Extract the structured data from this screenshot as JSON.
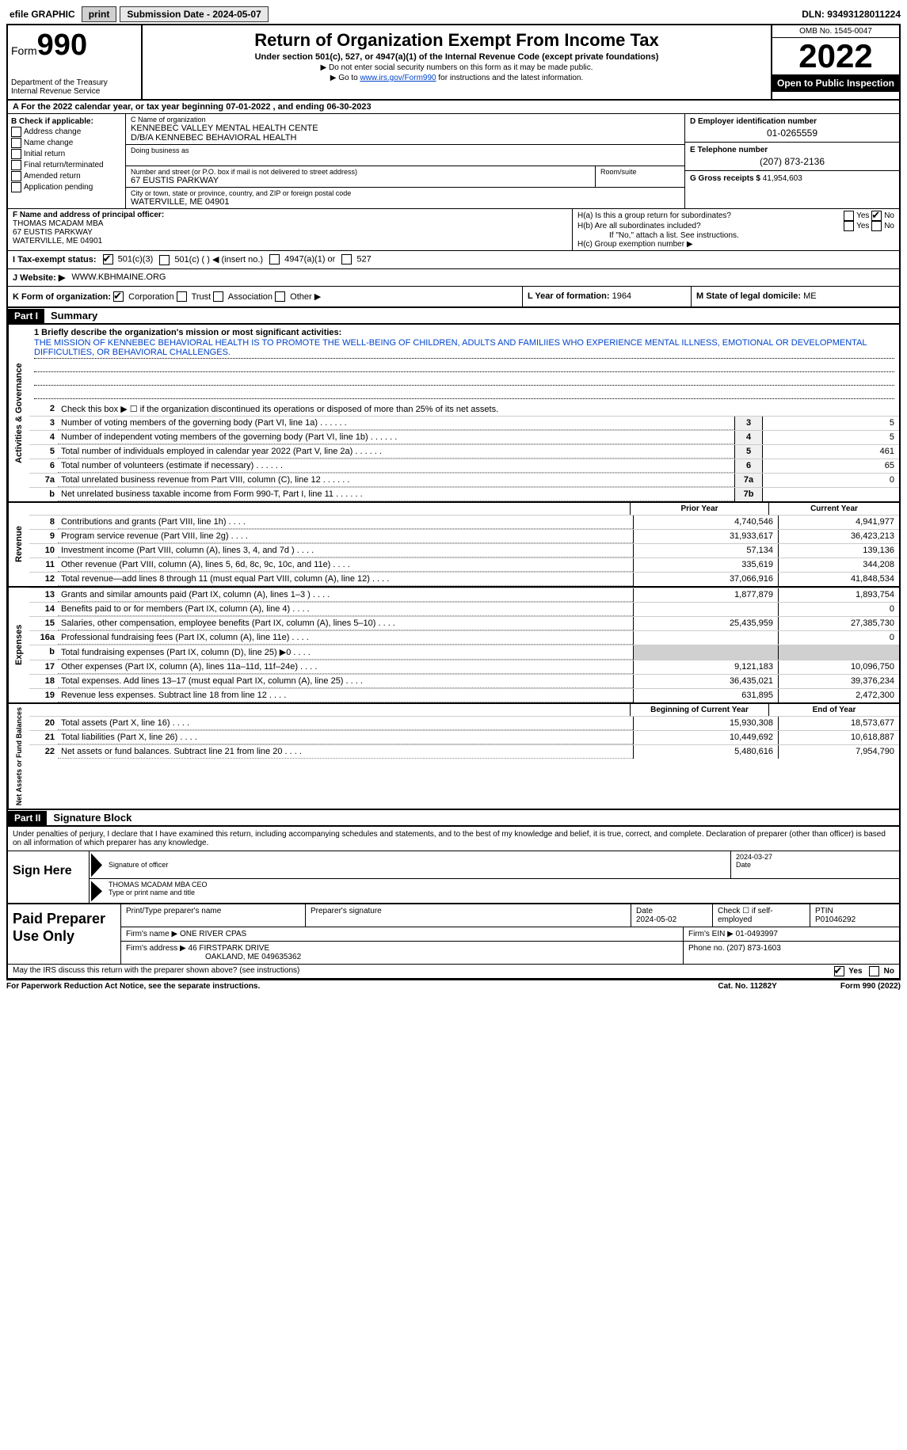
{
  "topbar": {
    "efile_label": "efile GRAPHIC",
    "print_btn": "print",
    "submission_label": "Submission Date - 2024-05-07",
    "dln": "DLN: 93493128011224"
  },
  "header": {
    "form_word": "Form",
    "form_num": "990",
    "dept": "Department of the Treasury",
    "irs": "Internal Revenue Service",
    "title": "Return of Organization Exempt From Income Tax",
    "subtitle": "Under section 501(c), 527, or 4947(a)(1) of the Internal Revenue Code (except private foundations)",
    "note1": "▶ Do not enter social security numbers on this form as it may be made public.",
    "note2_pre": "▶ Go to ",
    "note2_link": "www.irs.gov/Form990",
    "note2_post": " for instructions and the latest information.",
    "omb": "OMB No. 1545-0047",
    "year": "2022",
    "open": "Open to Public Inspection"
  },
  "row_a": "A   For the 2022 calendar year, or tax year beginning 07-01-2022    , and ending 06-30-2023",
  "col_b": {
    "label": "B Check if applicable:",
    "opts": [
      "Address change",
      "Name change",
      "Initial return",
      "Final return/terminated",
      "Amended return",
      "Application pending"
    ]
  },
  "col_c": {
    "name_label": "C Name of organization",
    "name1": "KENNEBEC VALLEY MENTAL HEALTH CENTE",
    "name2": "D/B/A KENNEBEC BEHAVIORAL HEALTH",
    "dba_label": "Doing business as",
    "street_label": "Number and street (or P.O. box if mail is not delivered to street address)",
    "street": "67 EUSTIS PARKWAY",
    "room_label": "Room/suite",
    "city_label": "City or town, state or province, country, and ZIP or foreign postal code",
    "city": "WATERVILLE, ME  04901"
  },
  "col_d": {
    "ein_label": "D Employer identification number",
    "ein": "01-0265559",
    "phone_label": "E Telephone number",
    "phone": "(207) 873-2136",
    "gross_label": "G Gross receipts $",
    "gross": "41,954,603"
  },
  "row_f": {
    "label": "F Name and address of principal officer:",
    "name": "THOMAS MCADAM MBA",
    "street": "67 EUSTIS PARKWAY",
    "city": "WATERVILLE, ME  04901"
  },
  "row_h": {
    "ha": "H(a)  Is this a group return for subordinates?",
    "hb": "H(b)  Are all subordinates included?",
    "hb_note": "If \"No,\" attach a list. See instructions.",
    "hc": "H(c)  Group exemption number ▶"
  },
  "row_i": {
    "label": "I    Tax-exempt status:",
    "o1": "501(c)(3)",
    "o2": "501(c) (  ) ◀ (insert no.)",
    "o3": "4947(a)(1) or",
    "o4": "527"
  },
  "row_j": {
    "label": "J   Website: ▶",
    "val": "WWW.KBHMAINE.ORG"
  },
  "row_k": {
    "label": "K Form of organization:",
    "o1": "Corporation",
    "o2": "Trust",
    "o3": "Association",
    "o4": "Other ▶",
    "l_label": "L Year of formation:",
    "l_val": "1964",
    "m_label": "M State of legal domicile:",
    "m_val": "ME"
  },
  "part1": {
    "header": "Part I",
    "title": "Summary",
    "vlabels": {
      "gov": "Activities & Governance",
      "rev": "Revenue",
      "exp": "Expenses",
      "net": "Net Assets or Fund Balances"
    },
    "line1_label": "1   Briefly describe the organization's mission or most significant activities:",
    "mission": "THE MISSION OF KENNEBEC BEHAVIORAL HEALTH IS TO PROMOTE THE WELL-BEING OF CHILDREN, ADULTS AND FAMILIIES WHO EXPERIENCE MENTAL ILLNESS, EMOTIONAL OR DEVELOPMENTAL DIFFICULTIES, OR BEHAVIORAL CHALLENGES.",
    "line2": "Check this box ▶ ☐  if the organization discontinued its operations or disposed of more than 25% of its net assets.",
    "gov_lines": [
      {
        "n": "3",
        "d": "Number of voting members of the governing body (Part VI, line 1a)",
        "b": "3",
        "v": "5"
      },
      {
        "n": "4",
        "d": "Number of independent voting members of the governing body (Part VI, line 1b)",
        "b": "4",
        "v": "5"
      },
      {
        "n": "5",
        "d": "Total number of individuals employed in calendar year 2022 (Part V, line 2a)",
        "b": "5",
        "v": "461"
      },
      {
        "n": "6",
        "d": "Total number of volunteers (estimate if necessary)",
        "b": "6",
        "v": "65"
      },
      {
        "n": "7a",
        "d": "Total unrelated business revenue from Part VIII, column (C), line 12",
        "b": "7a",
        "v": "0"
      },
      {
        "n": "b",
        "d": "Net unrelated business taxable income from Form 990-T, Part I, line 11",
        "b": "7b",
        "v": ""
      }
    ],
    "col_hdr_prior": "Prior Year",
    "col_hdr_current": "Current Year",
    "col_hdr_begin": "Beginning of Current Year",
    "col_hdr_end": "End of Year",
    "rev_lines": [
      {
        "n": "8",
        "d": "Contributions and grants (Part VIII, line 1h)",
        "p": "4,740,546",
        "c": "4,941,977"
      },
      {
        "n": "9",
        "d": "Program service revenue (Part VIII, line 2g)",
        "p": "31,933,617",
        "c": "36,423,213"
      },
      {
        "n": "10",
        "d": "Investment income (Part VIII, column (A), lines 3, 4, and 7d )",
        "p": "57,134",
        "c": "139,136"
      },
      {
        "n": "11",
        "d": "Other revenue (Part VIII, column (A), lines 5, 6d, 8c, 9c, 10c, and 11e)",
        "p": "335,619",
        "c": "344,208"
      },
      {
        "n": "12",
        "d": "Total revenue—add lines 8 through 11 (must equal Part VIII, column (A), line 12)",
        "p": "37,066,916",
        "c": "41,848,534"
      }
    ],
    "exp_lines": [
      {
        "n": "13",
        "d": "Grants and similar amounts paid (Part IX, column (A), lines 1–3 )",
        "p": "1,877,879",
        "c": "1,893,754"
      },
      {
        "n": "14",
        "d": "Benefits paid to or for members (Part IX, column (A), line 4)",
        "p": "",
        "c": "0"
      },
      {
        "n": "15",
        "d": "Salaries, other compensation, employee benefits (Part IX, column (A), lines 5–10)",
        "p": "25,435,959",
        "c": "27,385,730"
      },
      {
        "n": "16a",
        "d": "Professional fundraising fees (Part IX, column (A), line 11e)",
        "p": "",
        "c": "0"
      },
      {
        "n": "b",
        "d": "Total fundraising expenses (Part IX, column (D), line 25) ▶0",
        "p": "shaded",
        "c": "shaded"
      },
      {
        "n": "17",
        "d": "Other expenses (Part IX, column (A), lines 11a–11d, 11f–24e)",
        "p": "9,121,183",
        "c": "10,096,750"
      },
      {
        "n": "18",
        "d": "Total expenses. Add lines 13–17 (must equal Part IX, column (A), line 25)",
        "p": "36,435,021",
        "c": "39,376,234"
      },
      {
        "n": "19",
        "d": "Revenue less expenses. Subtract line 18 from line 12",
        "p": "631,895",
        "c": "2,472,300"
      }
    ],
    "net_lines": [
      {
        "n": "20",
        "d": "Total assets (Part X, line 16)",
        "p": "15,930,308",
        "c": "18,573,677"
      },
      {
        "n": "21",
        "d": "Total liabilities (Part X, line 26)",
        "p": "10,449,692",
        "c": "10,618,887"
      },
      {
        "n": "22",
        "d": "Net assets or fund balances. Subtract line 21 from line 20",
        "p": "5,480,616",
        "c": "7,954,790"
      }
    ]
  },
  "part2": {
    "header": "Part II",
    "title": "Signature Block",
    "intro": "Under penalties of perjury, I declare that I have examined this return, including accompanying schedules and statements, and to the best of my knowledge and belief, it is true, correct, and complete. Declaration of preparer (other than officer) is based on all information of which preparer has any knowledge.",
    "sign_here": "Sign Here",
    "sig_officer": "Signature of officer",
    "sig_date": "2024-03-27",
    "date_lbl": "Date",
    "officer_name": "THOMAS MCADAM MBA CEO",
    "type_name": "Type or print name and title",
    "paid_prep": "Paid Preparer Use Only",
    "prep_name_lbl": "Print/Type preparer's name",
    "prep_sig_lbl": "Preparer's signature",
    "prep_date_lbl": "Date",
    "prep_date": "2024-05-02",
    "check_self": "Check ☐ if self-employed",
    "ptin_lbl": "PTIN",
    "ptin": "P01046292",
    "firm_name_lbl": "Firm's name    ▶",
    "firm_name": "ONE RIVER CPAS",
    "firm_ein_lbl": "Firm's EIN ▶",
    "firm_ein": "01-0493997",
    "firm_addr_lbl": "Firm's address ▶",
    "firm_addr1": "46 FIRSTPARK DRIVE",
    "firm_addr2": "OAKLAND, ME  049635362",
    "firm_phone_lbl": "Phone no.",
    "firm_phone": "(207) 873-1603",
    "discuss": "May the IRS discuss this return with the preparer shown above? (see instructions)",
    "yes": "Yes",
    "no": "No"
  },
  "footer": {
    "pra": "For Paperwork Reduction Act Notice, see the separate instructions.",
    "cat": "Cat. No. 11282Y",
    "form": "Form 990 (2022)"
  }
}
